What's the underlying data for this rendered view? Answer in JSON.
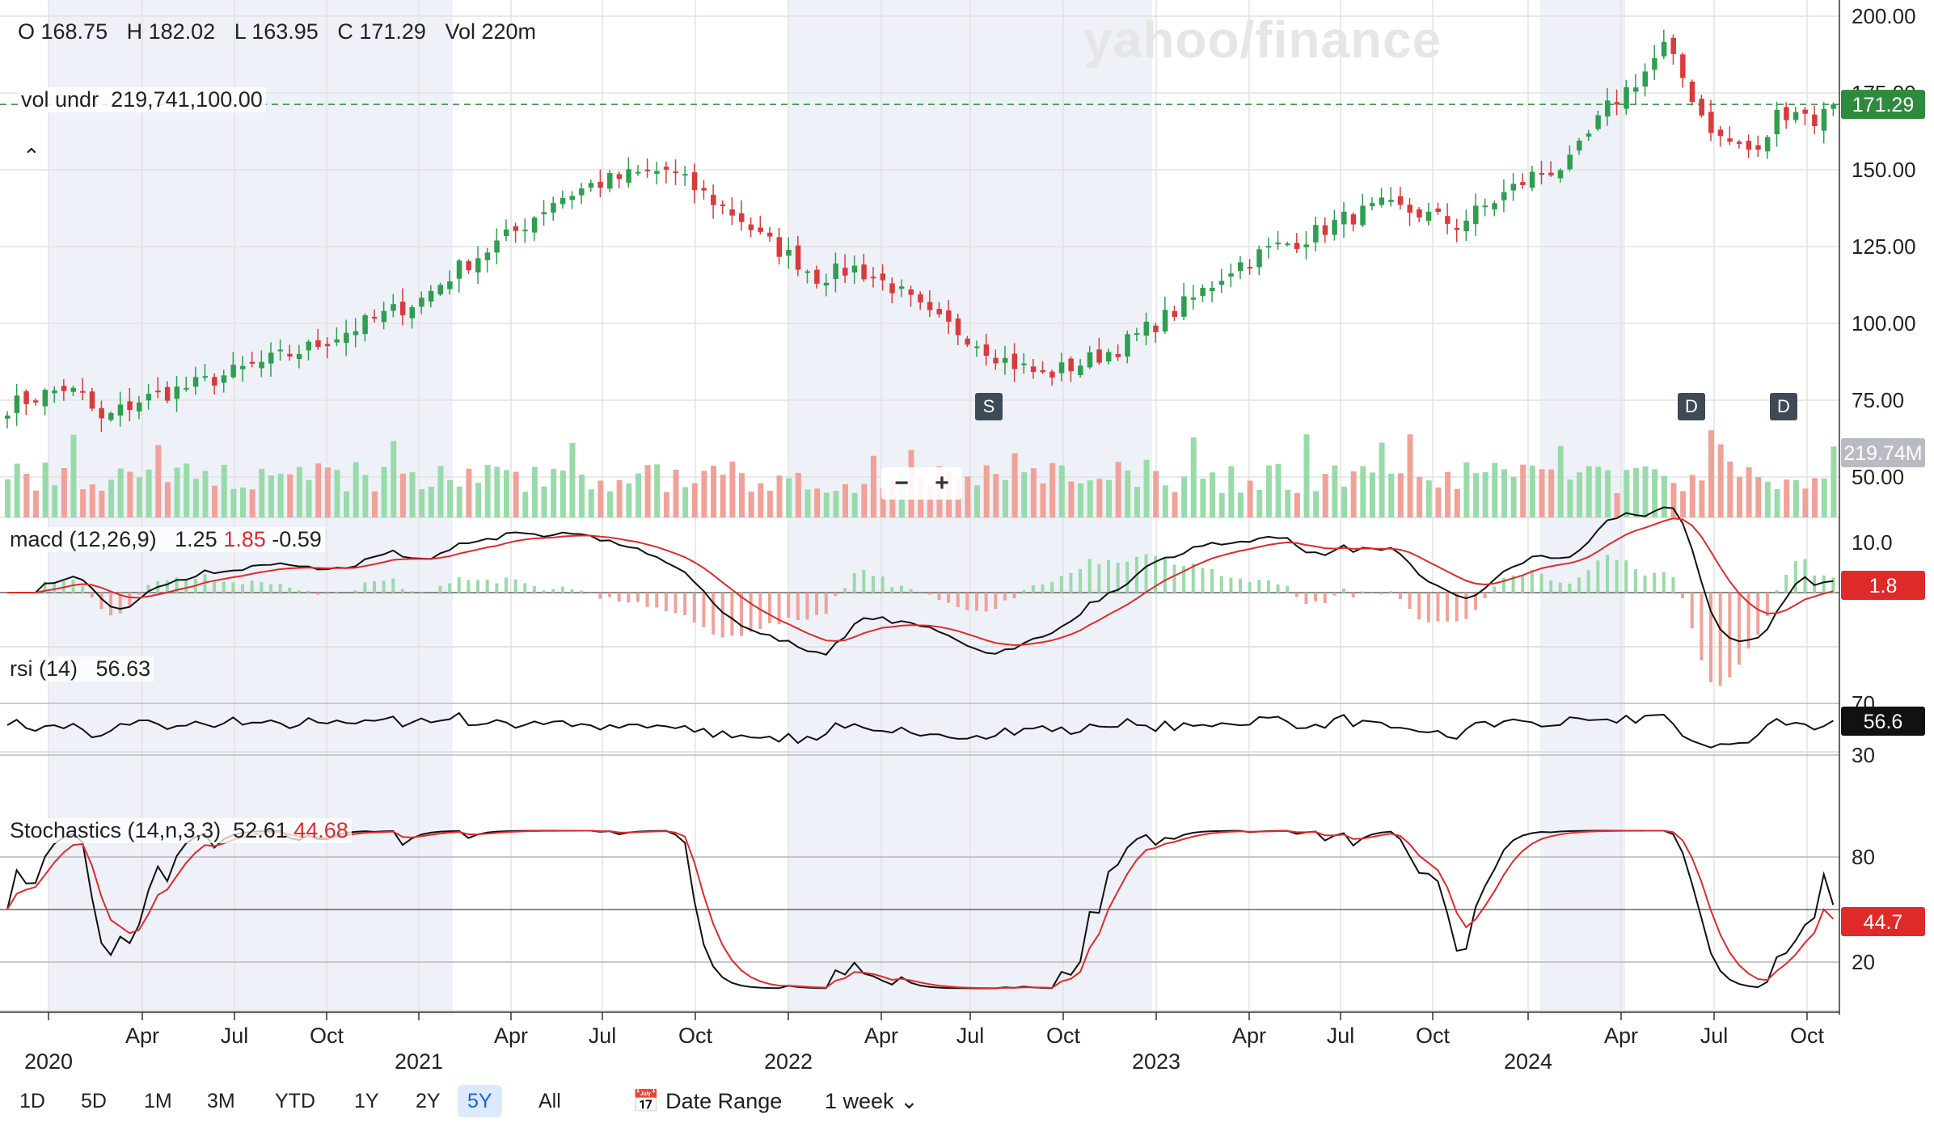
{
  "header": {
    "open": "O 168.75",
    "high": "H 182.02",
    "low": "L 163.95",
    "close": "C 171.29",
    "volume": "Vol 220m"
  },
  "volume_underlay": {
    "label": "vol undr",
    "value": "219,741,100.00"
  },
  "logo_text": "yahoo/finance",
  "price_tag": "171.29",
  "volume_tag": "219.74M",
  "macd": {
    "label": "macd (12,26,9)",
    "v1": "1.25",
    "v2": "1.85",
    "v3": "-0.59",
    "tag": "1.8"
  },
  "rsi": {
    "label": "rsi (14)",
    "value": "56.63",
    "tag": "56.6"
  },
  "stochastics": {
    "label": "Stochastics (14,n,3,3)",
    "k": "52.61",
    "d": "44.68",
    "tag": "44.7"
  },
  "events": [
    {
      "label": "S"
    },
    {
      "label": "D"
    },
    {
      "label": "D"
    }
  ],
  "zoom": {
    "minus": "−",
    "plus": "+"
  },
  "range_buttons": [
    "1D",
    "5D",
    "1M",
    "3M",
    "YTD",
    "1Y",
    "2Y",
    "5Y",
    "All"
  ],
  "active_range": "5Y",
  "date_range_label": "Date Range",
  "interval_label": "1 week",
  "colors": {
    "up": "#2e9e4f",
    "down": "#d93b3b",
    "vol_up": "#98dba9",
    "vol_down": "#f0a298",
    "price_tag_bg": "#2e8b3d",
    "macd_tag_bg": "#e02a2a",
    "shade": "#eef1f8"
  },
  "chart_data": {
    "type": "candlestick",
    "title": "",
    "x_ticks": [
      "2020",
      "Apr",
      "Jul",
      "Oct",
      "2021",
      "Apr",
      "Jul",
      "Oct",
      "2022",
      "Apr",
      "Jul",
      "Oct",
      "2023",
      "Apr",
      "Jul",
      "Oct",
      "2024",
      "Apr",
      "Jul",
      "Oct"
    ],
    "price_axis": {
      "ticks": [
        50,
        75,
        100,
        125,
        150,
        175,
        200
      ],
      "tick_labels": [
        "50.00",
        "75.00",
        "100.00",
        "125.00",
        "150.00",
        "175.00",
        "200.00"
      ],
      "range": [
        40,
        205
      ]
    },
    "macd_axis": {
      "tick_labels": [
        "10.0"
      ]
    },
    "rsi_axis": {
      "tick_labels": [
        "70",
        "30"
      ]
    },
    "stoch_axis": {
      "tick_labels": [
        "80",
        "20"
      ]
    },
    "price_anchors": [
      [
        0,
        73
      ],
      [
        3,
        76
      ],
      [
        6,
        79
      ],
      [
        8,
        76
      ],
      [
        10,
        68
      ],
      [
        11,
        70
      ],
      [
        14,
        75
      ],
      [
        20,
        80
      ],
      [
        26,
        86
      ],
      [
        32,
        92
      ],
      [
        38,
        100
      ],
      [
        44,
        108
      ],
      [
        48,
        118
      ],
      [
        54,
        130
      ],
      [
        58,
        140
      ],
      [
        62,
        145
      ],
      [
        66,
        148
      ],
      [
        70,
        150
      ],
      [
        74,
        142
      ],
      [
        78,
        134
      ],
      [
        80,
        128
      ],
      [
        84,
        120
      ],
      [
        86,
        115
      ],
      [
        90,
        118
      ],
      [
        94,
        112
      ],
      [
        98,
        102
      ],
      [
        102,
        96
      ],
      [
        106,
        88
      ],
      [
        110,
        83
      ],
      [
        114,
        87
      ],
      [
        118,
        92
      ],
      [
        122,
        100
      ],
      [
        126,
        108
      ],
      [
        130,
        118
      ],
      [
        134,
        124
      ],
      [
        138,
        128
      ],
      [
        142,
        134
      ],
      [
        146,
        138
      ],
      [
        150,
        136
      ],
      [
        154,
        132
      ],
      [
        158,
        140
      ],
      [
        162,
        148
      ],
      [
        166,
        152
      ],
      [
        170,
        170
      ],
      [
        174,
        182
      ],
      [
        176,
        190
      ],
      [
        178,
        180
      ],
      [
        180,
        168
      ],
      [
        182,
        160
      ],
      [
        184,
        158
      ],
      [
        186,
        155
      ],
      [
        188,
        168
      ],
      [
        190,
        170
      ],
      [
        192,
        166
      ],
      [
        194,
        171
      ]
    ],
    "events": [
      {
        "label": "S",
        "week": 106
      },
      {
        "label": "D",
        "week": 181
      },
      {
        "label": "D",
        "week": 192
      }
    ],
    "last_close": 171.29,
    "last_volume_millions": 219.74,
    "macd_values": {
      "macd": 1.25,
      "signal": 1.85,
      "histogram": -0.59
    },
    "rsi_value": 56.63,
    "stochastics_values": {
      "k": 52.61,
      "d": 44.68
    }
  }
}
